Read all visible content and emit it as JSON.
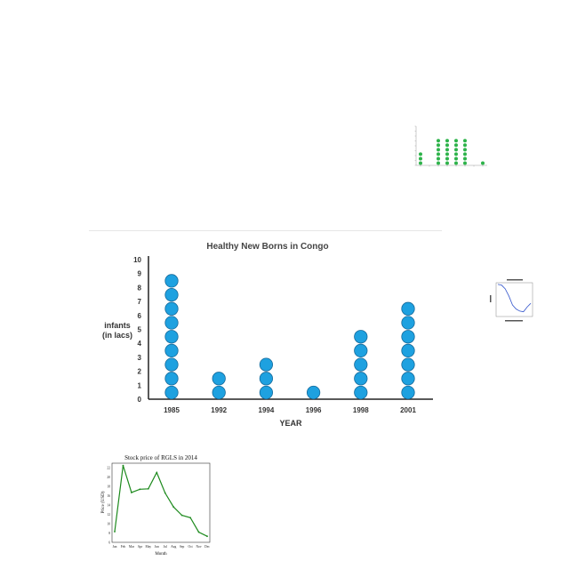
{
  "colors": {
    "dot_fill": "#1ea1e0",
    "dot_stroke": "#15699a",
    "axis": "#222222",
    "stock_line": "#1d8a1d",
    "thumb_dot": "#2db34a",
    "thumb_line": "#3355cc",
    "divider": "#e6e6e6"
  },
  "chart_data": [
    {
      "type": "scatter",
      "style": "dot-plot",
      "title": "Healthy New Borns in Congo",
      "xlabel": "YEAR",
      "ylabel_lines": [
        "infants",
        "(in lacs)"
      ],
      "categories": [
        "1985",
        "1992",
        "1994",
        "1996",
        "1998",
        "2001"
      ],
      "values": [
        9,
        2,
        3,
        1,
        5,
        7
      ],
      "ylim": [
        0,
        10
      ],
      "yticks": [
        "0",
        "1",
        "2",
        "3",
        "4",
        "5",
        "6",
        "7",
        "8",
        "9",
        "10"
      ],
      "grid": false,
      "legend": "none"
    },
    {
      "type": "line",
      "title": "Stock price of RGLS in 2014",
      "xlabel": "Month",
      "ylabel": "Price (USD)",
      "categories": [
        "Jan",
        "Feb",
        "Mar",
        "Apr",
        "May",
        "Jun",
        "Jul",
        "Aug",
        "Sep",
        "Oct",
        "Nov",
        "Dec"
      ],
      "values": [
        8.3,
        22.5,
        16.7,
        17.4,
        17.5,
        21.0,
        16.6,
        13.6,
        11.8,
        11.3,
        8.2,
        7.3
      ],
      "ylim": [
        6,
        23
      ],
      "yticks": [
        "6",
        "8",
        "10",
        "12",
        "14",
        "16",
        "18",
        "20",
        "22"
      ],
      "grid": false,
      "legend": "none"
    },
    {
      "type": "scatter",
      "style": "dot-plot-thumbnail",
      "values": [
        3,
        0,
        6,
        6,
        6,
        6,
        0,
        1
      ],
      "ylim": [
        0,
        8
      ]
    },
    {
      "type": "line",
      "style": "thumbnail",
      "values": [
        9.5,
        9.3,
        8.2,
        6.1,
        3.4,
        2.2,
        1.6,
        1.4,
        2.8,
        3.9
      ],
      "ylim": [
        0,
        10
      ]
    }
  ]
}
